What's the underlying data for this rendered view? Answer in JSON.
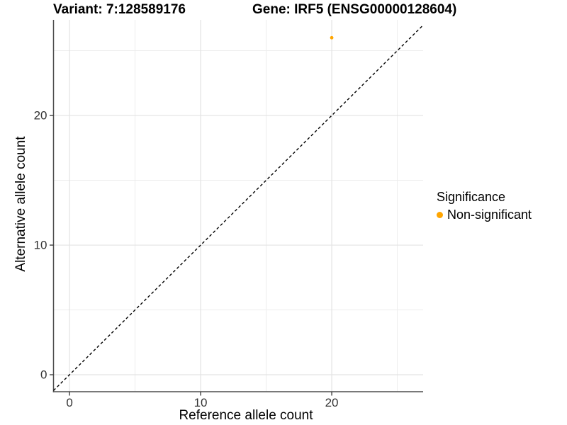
{
  "chart_data": {
    "type": "scatter",
    "variant_title": "Variant: 7:128589176",
    "gene_title": "Gene: IRF5 (ENSG00000128604)",
    "xlabel": "Reference allele count",
    "ylabel": "Alternative allele count",
    "xlim": [
      -1.22,
      26.97
    ],
    "ylim": [
      -1.31,
      27.38
    ],
    "x_ticks": {
      "values": [
        0,
        10,
        20
      ],
      "labels": [
        "0",
        "10",
        "20"
      ]
    },
    "y_ticks": {
      "values": [
        0,
        10,
        20
      ],
      "labels": [
        "0",
        "10",
        "20"
      ]
    },
    "x_minor": [
      5,
      15,
      25
    ],
    "y_minor": [
      5,
      15,
      25
    ],
    "grid": true,
    "points": [
      {
        "x": 20,
        "y": 26,
        "series": "Non-significant"
      }
    ],
    "identity_line": {
      "style": "dashed",
      "from": [
        -1.22,
        -1.22
      ],
      "to": [
        26.97,
        26.97
      ],
      "color": "#000000"
    },
    "legend": {
      "title": "Significance",
      "position": "right",
      "items": [
        {
          "label": "Non-significant",
          "color": "#FFA500"
        }
      ]
    },
    "colors": {
      "point": "#FFA500",
      "grid_major": "#E3E3E3",
      "grid_minor": "#EDEDED",
      "axis_line": "#4D4D4D",
      "tick_mark": "#333333",
      "tick_text": "#333333",
      "background": "#FFFFFF"
    }
  }
}
